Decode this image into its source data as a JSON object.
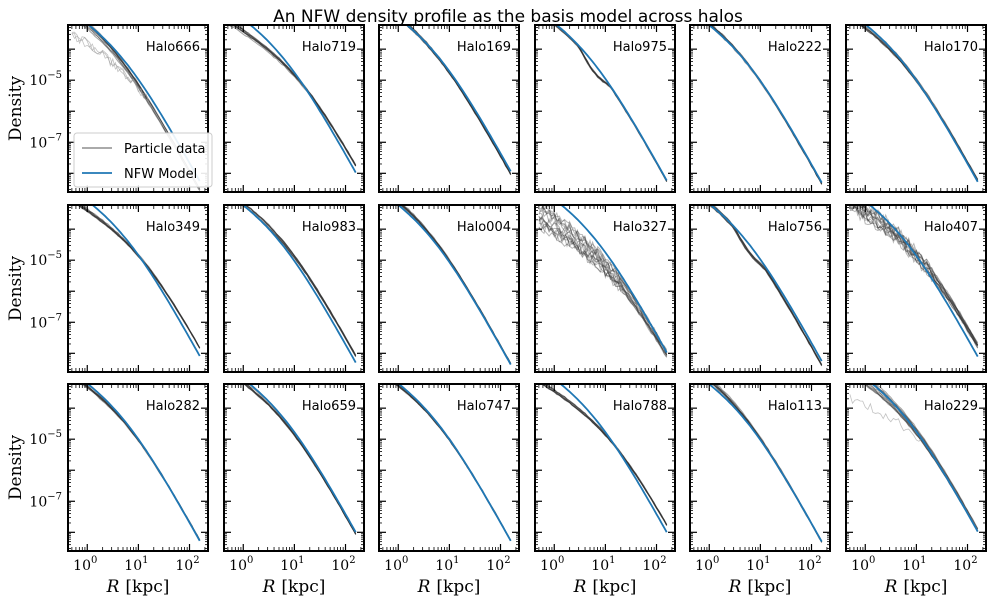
{
  "chart_data": {
    "type": "line",
    "title": "An NFW density profile as the basis model across halos",
    "xlabel_var": "R",
    "xlabel_unit": "[kpc]",
    "ylabel": "Density",
    "xscale": "log",
    "yscale": "log",
    "xlim": [
      0.42,
      230
    ],
    "ylim": [
      2.5e-09,
      0.0006
    ],
    "x_tick_labels": [
      {
        "base": "10",
        "exp": "0"
      },
      {
        "base": "10",
        "exp": "1"
      },
      {
        "base": "10",
        "exp": "2"
      }
    ],
    "y_tick_labels": [
      {
        "base": "10",
        "exp": "−5"
      },
      {
        "base": "10",
        "exp": "−7"
      }
    ],
    "legend": {
      "location": "lower-left",
      "entries": [
        {
          "label": "Particle data",
          "color": "#555555"
        },
        {
          "label": "NFW Model",
          "color": "#1f77b4"
        }
      ]
    },
    "colors": {
      "model": "#1f77b4",
      "data": "#333333"
    },
    "panels": [
      {
        "name": "Halo666",
        "rho0": 0.00019,
        "rs": 5,
        "data_amp": 0.00028,
        "data_rs": 3.5,
        "data_spread": 0.15,
        "outliers": 3,
        "outlier_dip": 0.8
      },
      {
        "name": "Halo719",
        "rho0": 0.00021,
        "rs": 6,
        "data_amp": 3e-05,
        "data_rs": 14,
        "data_spread": 0.08
      },
      {
        "name": "Halo169",
        "rho0": 0.00023,
        "rs": 6,
        "data_amp": 0.00032,
        "data_rs": 5,
        "data_spread": 0.06
      },
      {
        "name": "Halo975",
        "rho0": 0.0002,
        "rs": 5,
        "data_amp": 0.00019,
        "data_rs": 5,
        "data_spread": 0.04,
        "dip": 0.25
      },
      {
        "name": "Halo222",
        "rho0": 0.00017,
        "rs": 5,
        "data_amp": 0.00021,
        "data_rs": 4.5,
        "data_spread": 0.05
      },
      {
        "name": "Halo170",
        "rho0": 0.00018,
        "rs": 5,
        "data_amp": 0.00012,
        "data_rs": 6,
        "data_spread": 0.08
      },
      {
        "name": "Halo349",
        "rho0": 0.00021,
        "rs": 5.5,
        "data_amp": 4e-05,
        "data_rs": 12,
        "data_spread": 0.06
      },
      {
        "name": "Halo983",
        "rho0": 0.00017,
        "rs": 5,
        "data_amp": 0.00013,
        "data_rs": 6.5,
        "data_spread": 0.06
      },
      {
        "name": "Halo004",
        "rho0": 0.0002,
        "rs": 4.5,
        "data_amp": 0.0003,
        "data_rs": 4,
        "data_spread": 0.06
      },
      {
        "name": "Halo327",
        "rho0": 0.00021,
        "rs": 6,
        "data_amp": 8e-06,
        "data_rs": 18,
        "data_spread": 0.35,
        "noisy": true
      },
      {
        "name": "Halo756",
        "rho0": 0.00019,
        "rs": 5,
        "data_amp": 0.00027,
        "data_rs": 4,
        "data_spread": 0.06,
        "dip": 0.2
      },
      {
        "name": "Halo407",
        "rho0": 0.0002,
        "rs": 5.5,
        "data_amp": 3e-05,
        "data_rs": 14,
        "data_spread": 0.25,
        "noisy": true
      },
      {
        "name": "Halo282",
        "rho0": 0.00018,
        "rs": 5,
        "data_amp": 0.00011,
        "data_rs": 6,
        "data_spread": 0.05
      },
      {
        "name": "Halo659",
        "rho0": 0.0002,
        "rs": 6,
        "data_amp": 0.00014,
        "data_rs": 6.5,
        "data_spread": 0.05
      },
      {
        "name": "Halo747",
        "rho0": 0.00018,
        "rs": 5,
        "data_amp": 0.00014,
        "data_rs": 5.5,
        "data_spread": 0.05
      },
      {
        "name": "Halo788",
        "rho0": 0.0002,
        "rs": 6,
        "data_amp": 3e-05,
        "data_rs": 14,
        "data_spread": 0.06
      },
      {
        "name": "Halo113",
        "rho0": 0.00017,
        "rs": 5,
        "data_amp": 0.00032,
        "data_rs": 4,
        "data_spread": 0.08
      },
      {
        "name": "Halo229",
        "rho0": 0.00021,
        "rs": 6,
        "data_amp": 0.00015,
        "data_rs": 7,
        "data_spread": 0.18,
        "outliers": 1,
        "outlier_dip": 1.1
      }
    ]
  }
}
